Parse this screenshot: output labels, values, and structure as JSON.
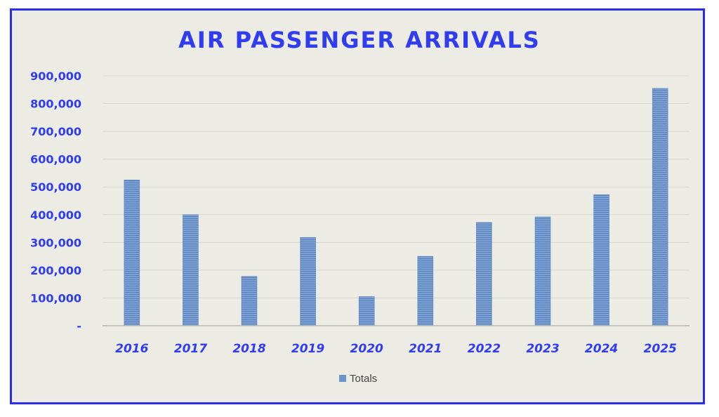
{
  "chart_data": {
    "type": "bar",
    "title": "AIR PASSENGER ARRIVALS",
    "categories": [
      "2016",
      "2017",
      "2018",
      "2019",
      "2020",
      "2021",
      "2022",
      "2023",
      "2024",
      "2025"
    ],
    "series": [
      {
        "name": "Totals",
        "values": [
          525000,
          400000,
          178000,
          318000,
          105000,
          250000,
          372000,
          392000,
          472000,
          855000
        ]
      }
    ],
    "ylim": [
      0,
      900000
    ],
    "yticks": [
      0,
      100000,
      200000,
      300000,
      400000,
      500000,
      600000,
      700000,
      800000,
      900000
    ],
    "ytick_labels": [
      "-",
      "100,000",
      "200,000",
      "300,000",
      "400,000",
      "500,000",
      "600,000",
      "700,000",
      "800,000",
      "900,000"
    ],
    "grid": true,
    "legend_position": "bottom",
    "colors": {
      "bar": "#6e94cc",
      "text": "#2f3cf0",
      "border": "#2b2bea",
      "background": "#ecebe4",
      "grid": "#d6d6d0"
    }
  }
}
